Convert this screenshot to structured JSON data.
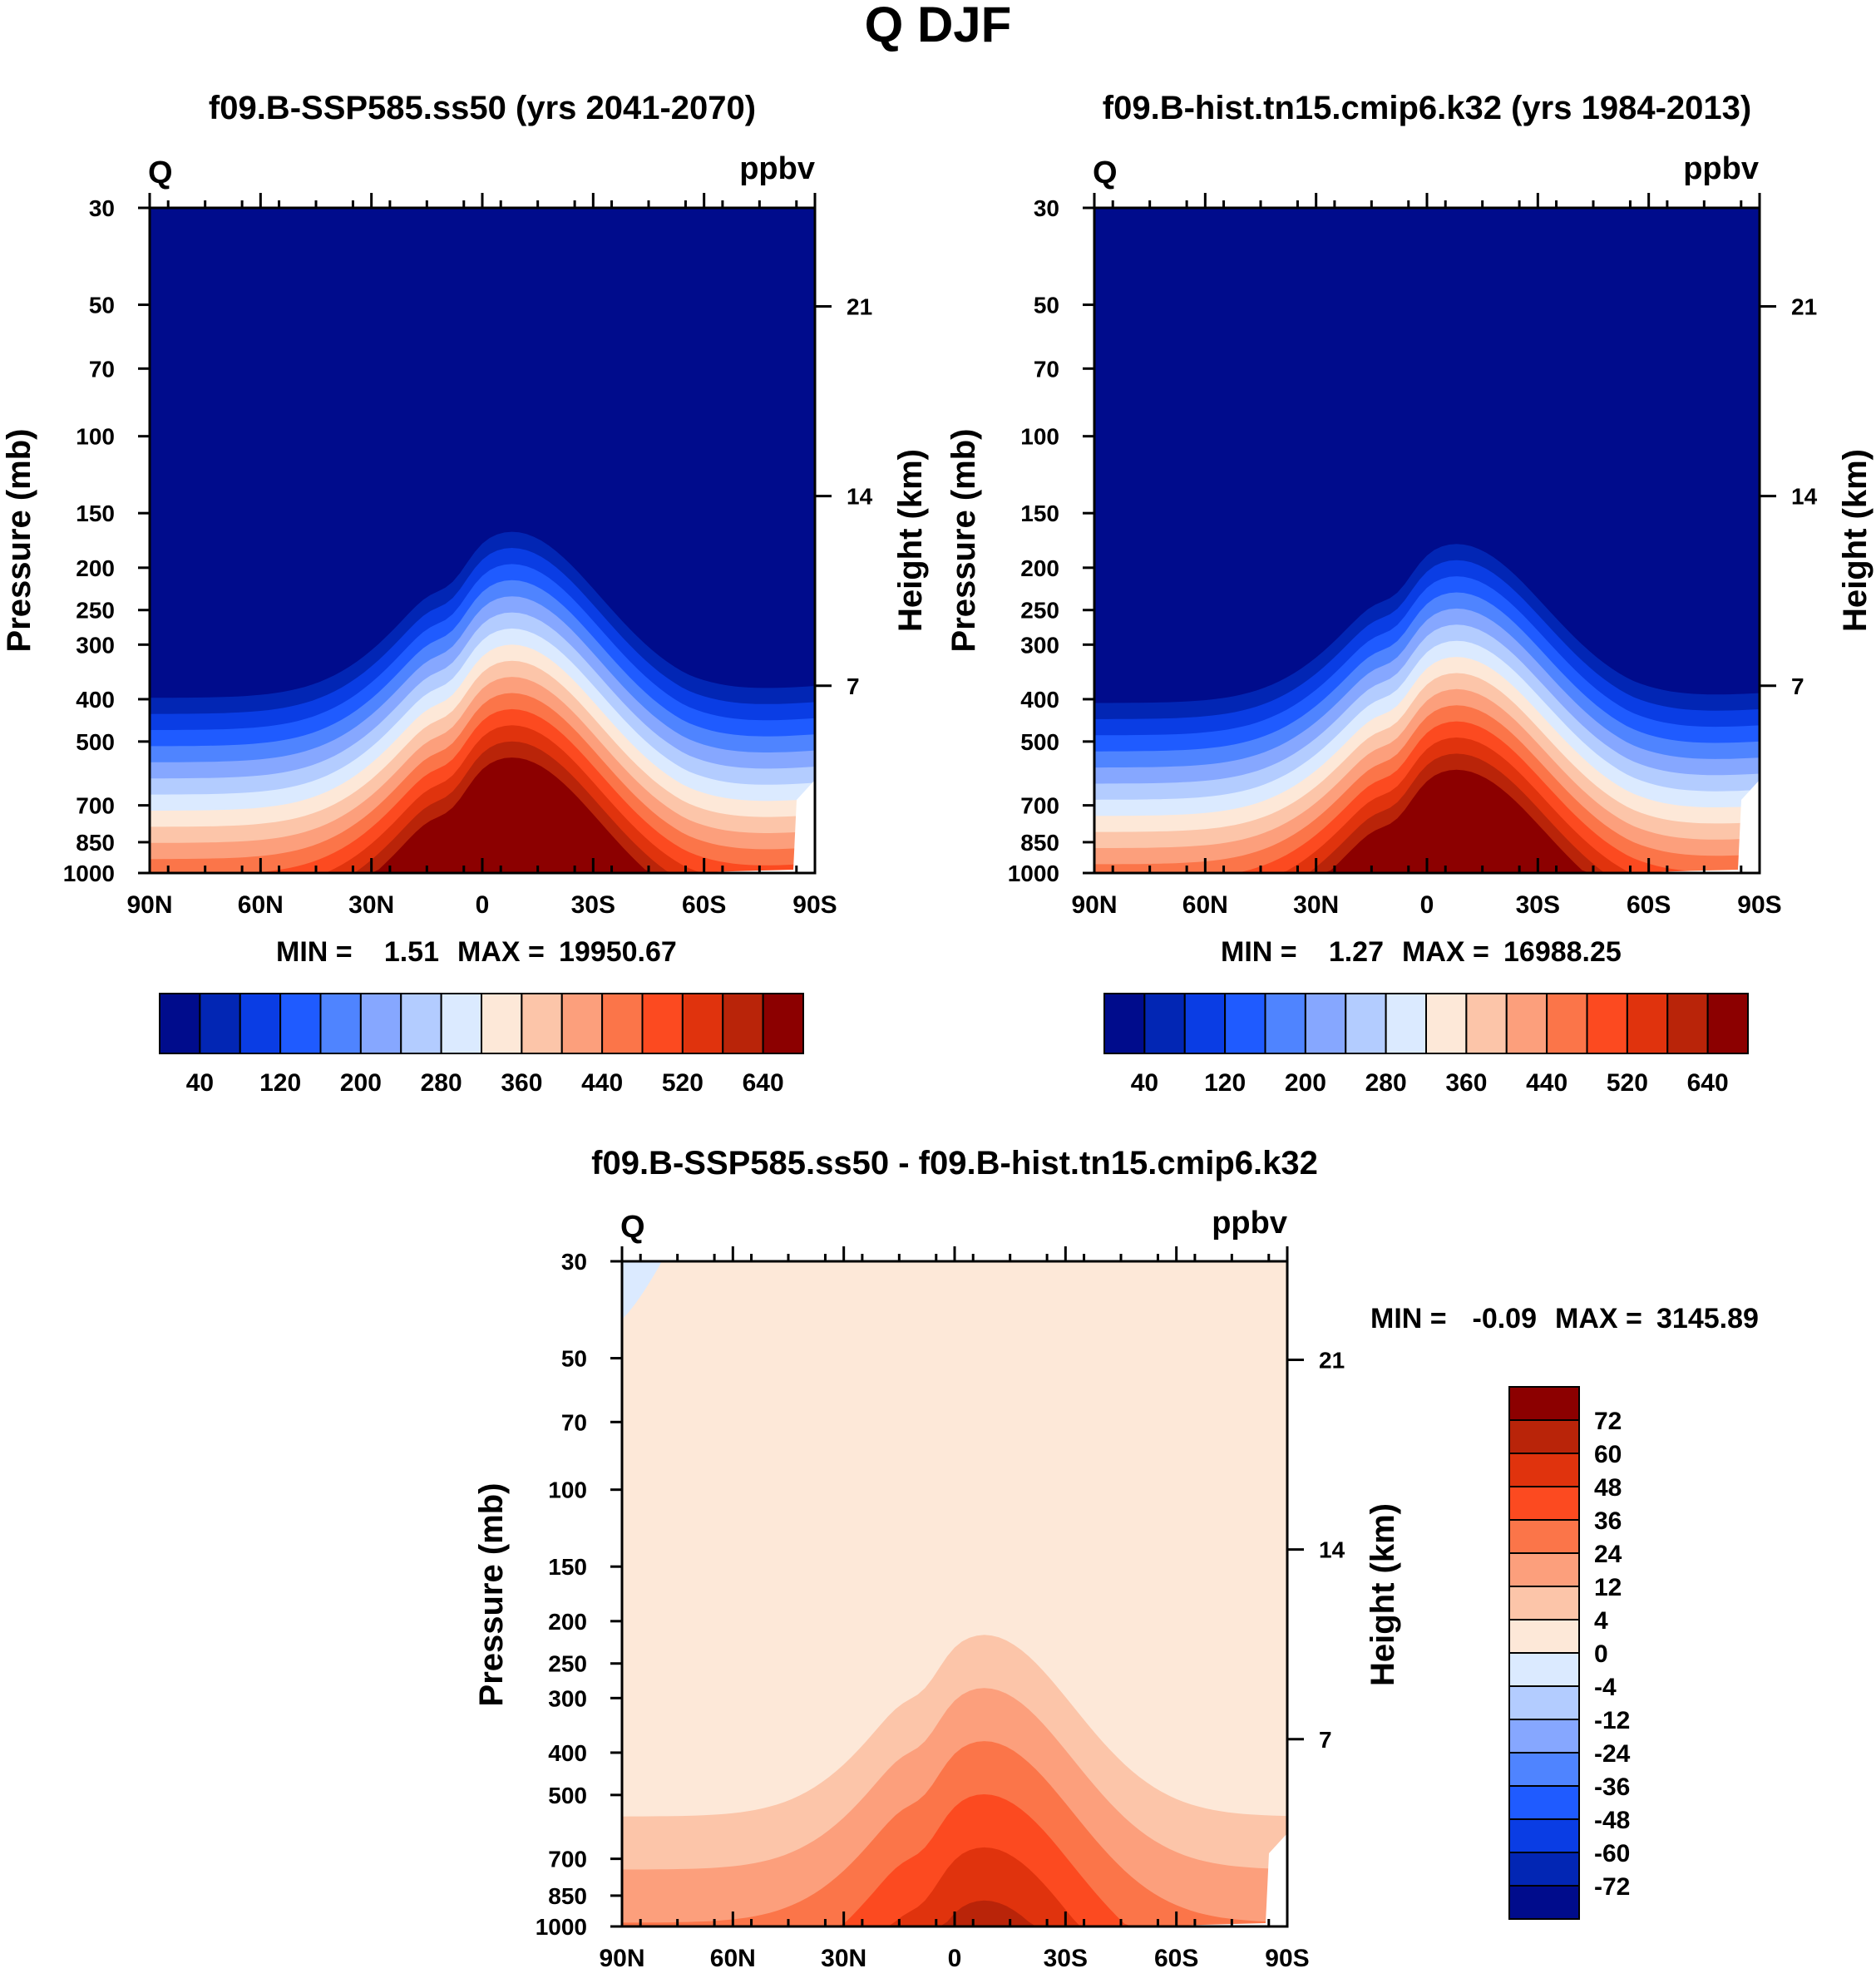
{
  "page_title": "Q DJF",
  "colors": {
    "seq": [
      "#000c8c",
      "#0226b4",
      "#0a3de4",
      "#1f5bff",
      "#4f84ff",
      "#86a7ff",
      "#b3ccff",
      "#dbeaff",
      "#fde8d8",
      "#fcc5a9",
      "#fc9f7c",
      "#fb7549",
      "#fc4a20",
      "#e0330d",
      "#b92409",
      "#8c0000"
    ],
    "diff": [
      "#8c0000",
      "#b92409",
      "#e0330d",
      "#fc4a20",
      "#fb7549",
      "#fc9f7c",
      "#fcc5a9",
      "#fde8d8",
      "#dbeaff",
      "#b3ccff",
      "#86a7ff",
      "#4f84ff",
      "#1f5bff",
      "#0a3de4",
      "#0226b4",
      "#000c8c"
    ]
  },
  "chart_data": [
    {
      "type": "heatmap",
      "id": "p1",
      "title": "f09.B-SSP585.ss50 (yrs 2041-2070)",
      "left_label": "Q",
      "right_label": "ppbv",
      "ylabel": "Pressure (mb)",
      "y2label": "Height (km)",
      "x_ticks": [
        "90N",
        "60N",
        "30N",
        "0",
        "30S",
        "60S",
        "90S"
      ],
      "y_ticks": [
        "30",
        "50",
        "70",
        "100",
        "150",
        "200",
        "250",
        "300",
        "400",
        "500",
        "700",
        "850",
        "1000"
      ],
      "y2_ticks": [
        "21",
        "14",
        "7"
      ],
      "min_label": "MIN =",
      "min_value": "1.51",
      "max_label": "MAX =",
      "max_value": "19950.67",
      "colorbar_labels": [
        "40",
        "120",
        "200",
        "280",
        "360",
        "440",
        "520",
        "640"
      ]
    },
    {
      "type": "heatmap",
      "id": "p2",
      "title": "f09.B-hist.tn15.cmip6.k32 (yrs 1984-2013)",
      "left_label": "Q",
      "right_label": "ppbv",
      "ylabel": "Pressure (mb)",
      "y2label": "Height (km)",
      "x_ticks": [
        "90N",
        "60N",
        "30N",
        "0",
        "30S",
        "60S",
        "90S"
      ],
      "y_ticks": [
        "30",
        "50",
        "70",
        "100",
        "150",
        "200",
        "250",
        "300",
        "400",
        "500",
        "700",
        "850",
        "1000"
      ],
      "y2_ticks": [
        "21",
        "14",
        "7"
      ],
      "min_label": "MIN =",
      "min_value": "1.27",
      "max_label": "MAX =",
      "max_value": "16988.25",
      "colorbar_labels": [
        "40",
        "120",
        "200",
        "280",
        "360",
        "440",
        "520",
        "640"
      ]
    },
    {
      "type": "heatmap",
      "id": "p3",
      "title": "f09.B-SSP585.ss50 - f09.B-hist.tn15.cmip6.k32",
      "left_label": "Q",
      "right_label": "ppbv",
      "ylabel": "Pressure (mb)",
      "y2label": "Height (km)",
      "x_ticks": [
        "90N",
        "60N",
        "30N",
        "0",
        "30S",
        "60S",
        "90S"
      ],
      "y_ticks": [
        "30",
        "50",
        "70",
        "100",
        "150",
        "200",
        "250",
        "300",
        "400",
        "500",
        "700",
        "850",
        "1000"
      ],
      "y2_ticks": [
        "21",
        "14",
        "7"
      ],
      "min_label": "MIN =",
      "min_value": "-0.09",
      "max_label": "MAX =",
      "max_value": "3145.89",
      "colorbar_labels": [
        "72",
        "60",
        "48",
        "36",
        "24",
        "12",
        "4",
        "0",
        "-4",
        "-12",
        "-24",
        "-36",
        "-48",
        "-60",
        "-72"
      ]
    }
  ]
}
